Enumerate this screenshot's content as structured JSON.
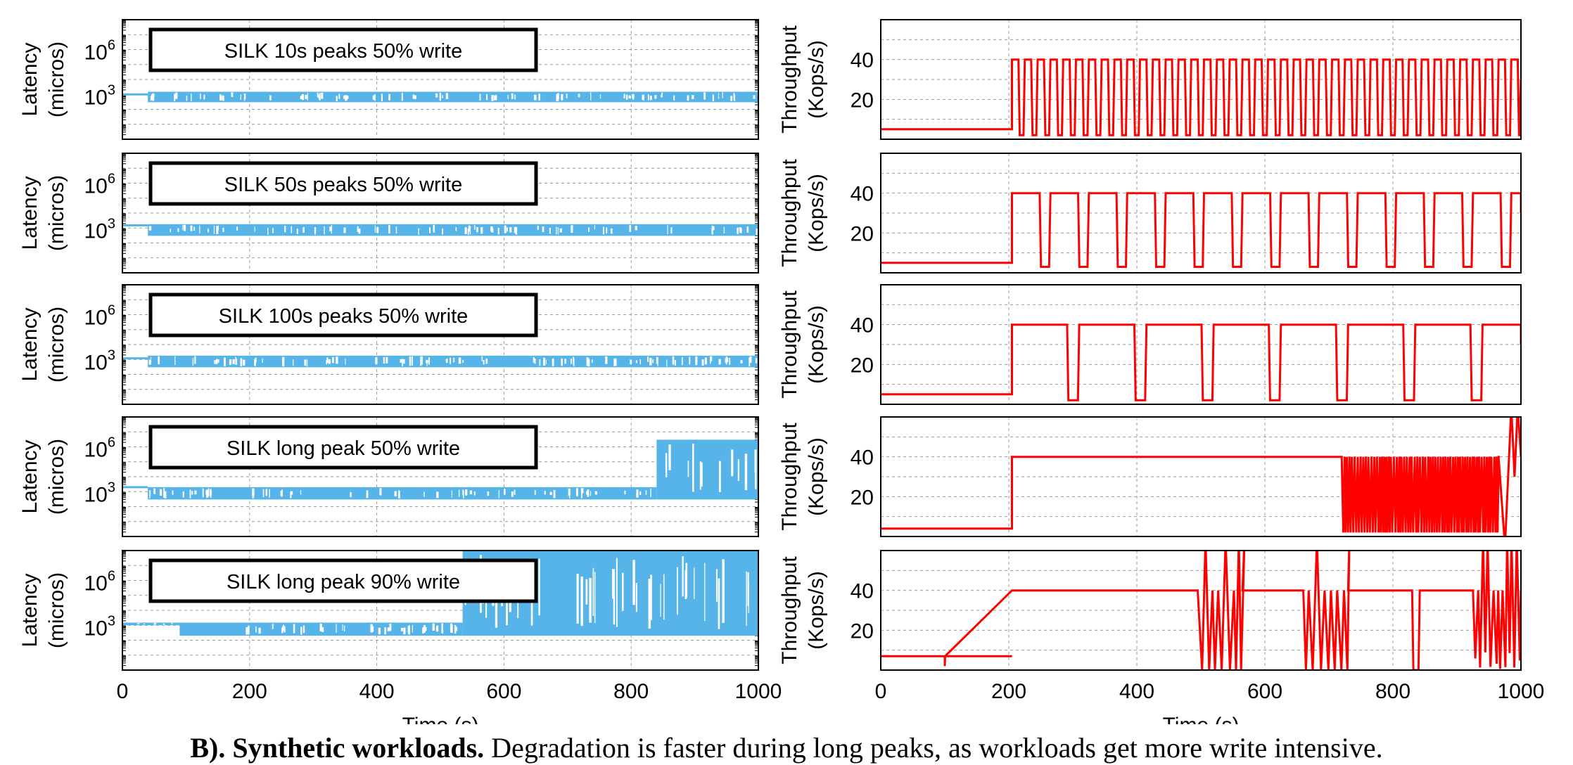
{
  "caption": {
    "bold": "B). Synthetic workloads.",
    "rest": " Degradation is faster during long peaks, as workloads get more write intensive."
  },
  "colors": {
    "latency": "#56b4e9",
    "throughput": "#ff0000",
    "grid": "#9a9a9a",
    "frame": "#000000"
  },
  "chart_data": [
    {
      "type": "line",
      "title": "SILK 10s peaks 50% write",
      "ylabel": [
        "Latency",
        "(micros)"
      ],
      "yscale": "log",
      "yticks": [
        "10^3",
        "10^6"
      ],
      "xlim": [
        0,
        1000
      ],
      "ylim": [
        1,
        100000000
      ],
      "series": [
        {
          "band": [
            {
              "x": [
                0,
                40
              ],
              "low": 1000,
              "high": 1000
            },
            {
              "x": [
                40,
                1000
              ],
              "low": 300,
              "high": 1500
            }
          ],
          "spikes": []
        }
      ]
    },
    {
      "type": "line",
      "title": "SILK 50s peaks 50% write",
      "ylabel": [
        "Latency",
        "(micros)"
      ],
      "yscale": "log",
      "yticks": [
        "10^3",
        "10^6"
      ],
      "xlim": [
        0,
        1000
      ],
      "ylim": [
        1,
        100000000
      ],
      "series": [
        {
          "band": [
            {
              "x": [
                0,
                40
              ],
              "low": 1500,
              "high": 1500
            },
            {
              "x": [
                40,
                1000
              ],
              "low": 300,
              "high": 1800
            }
          ],
          "spikes": []
        }
      ]
    },
    {
      "type": "line",
      "title": "SILK 100s peaks 50% write",
      "ylabel": [
        "Latency",
        "(micros)"
      ],
      "yscale": "log",
      "yticks": [
        "10^3",
        "10^6"
      ],
      "xlim": [
        0,
        1000
      ],
      "ylim": [
        1,
        100000000
      ],
      "series": [
        {
          "band": [
            {
              "x": [
                0,
                40
              ],
              "low": 1200,
              "high": 1200
            },
            {
              "x": [
                40,
                1000
              ],
              "low": 300,
              "high": 1800
            }
          ],
          "spikes": []
        }
      ]
    },
    {
      "type": "line",
      "title": "SILK long peak 50% write",
      "ylabel": [
        "Latency",
        "(micros)"
      ],
      "yscale": "log",
      "yticks": [
        "10^3",
        "10^6"
      ],
      "xlim": [
        0,
        1000
      ],
      "ylim": [
        1,
        100000000
      ],
      "series": [
        {
          "band": [
            {
              "x": [
                0,
                40
              ],
              "low": 2000,
              "high": 2000
            },
            {
              "x": [
                40,
                840
              ],
              "low": 300,
              "high": 2000
            },
            {
              "x": [
                840,
                1000
              ],
              "low": 300,
              "high": 3000000
            }
          ],
          "spikes": []
        }
      ]
    },
    {
      "type": "line",
      "title": "SILK long peak 90% write",
      "ylabel": [
        "Latency",
        "(micros)"
      ],
      "yscale": "log",
      "yticks": [
        "10^3",
        "10^6"
      ],
      "xlim": [
        0,
        1000
      ],
      "ylim": [
        1,
        100000000
      ],
      "series": [
        {
          "band": [
            {
              "x": [
                0,
                90
              ],
              "low": 1000,
              "high": 1500
            },
            {
              "x": [
                90,
                535
              ],
              "low": 200,
              "high": 1500
            },
            {
              "x": [
                535,
                1000
              ],
              "low": 200,
              "high": 100000000
            }
          ],
          "spikes": []
        }
      ]
    },
    {
      "type": "line",
      "ylabel": [
        "Throughput",
        "(Kops/s)"
      ],
      "yticks": [
        20,
        40
      ],
      "xlim": [
        0,
        1000
      ],
      "ylim": [
        0,
        60
      ],
      "series": [
        {
          "pattern": "square",
          "base": 5,
          "step_at": 205,
          "high": 40,
          "low": 2,
          "period": 20,
          "duty": 0.5
        }
      ]
    },
    {
      "type": "line",
      "ylabel": [
        "Throughput",
        "(Kops/s)"
      ],
      "yticks": [
        20,
        40
      ],
      "xlim": [
        0,
        1000
      ],
      "ylim": [
        0,
        60
      ],
      "series": [
        {
          "pattern": "square",
          "base": 5,
          "step_at": 205,
          "high": 40,
          "low": 3,
          "period": 60,
          "duty": 0.72
        }
      ]
    },
    {
      "type": "line",
      "ylabel": [
        "Throughput",
        "(Kops/s)"
      ],
      "yticks": [
        20,
        40
      ],
      "xlim": [
        0,
        1000
      ],
      "ylim": [
        0,
        60
      ],
      "series": [
        {
          "pattern": "square",
          "base": 5,
          "step_at": 205,
          "high": 40,
          "low": 2,
          "period": 105,
          "duty": 0.82
        }
      ]
    },
    {
      "type": "line",
      "ylabel": [
        "Throughput",
        "(Kops/s)"
      ],
      "yticks": [
        20,
        40
      ],
      "xlim": [
        0,
        1000
      ],
      "ylim": [
        0,
        60
      ],
      "series": [
        {
          "pattern": "long",
          "base": 4,
          "step_at": 205,
          "high": 40,
          "oscillate_from": 720,
          "oscillate_to": 965,
          "low": 2
        }
      ]
    },
    {
      "type": "line",
      "xlabel": "Time (s)",
      "ylabel": [
        "Throughput",
        "(Kops/s)"
      ],
      "yticks": [
        20,
        40
      ],
      "xticks": [
        0,
        200,
        400,
        600,
        800,
        1000
      ],
      "xlim": [
        0,
        1000
      ],
      "ylim": [
        0,
        60
      ],
      "series": [
        {
          "pattern": "long90",
          "base": 7,
          "step_at": 205,
          "high": 40,
          "low": 0
        }
      ]
    }
  ],
  "bottom_axes": {
    "left": {
      "xticks": [
        "0",
        "200",
        "400",
        "600",
        "800",
        "1000"
      ],
      "xlabel": "Time (s)"
    },
    "right": {
      "xticks": [
        "0",
        "200",
        "400",
        "600",
        "800",
        "1000"
      ],
      "xlabel": "Time (s)"
    }
  }
}
